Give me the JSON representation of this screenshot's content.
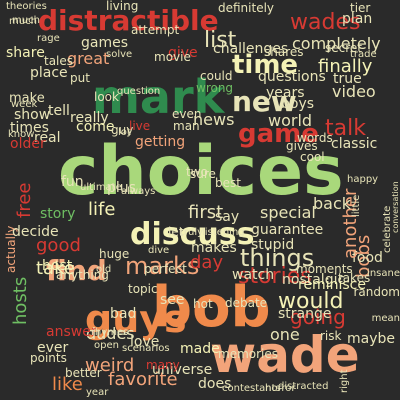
{
  "palette": {
    "background": "#2a2a2a",
    "light_green": "#a9d87b",
    "green": "#6fbf63",
    "dark_green": "#2f8b4e",
    "red": "#d73a33",
    "orange": "#f08a4b",
    "salmon": "#f2a47a",
    "pale_yellow": "#f4f2b6",
    "cream": "#e8e4b8"
  },
  "words": [
    "choices",
    "bob",
    "wade",
    "guys",
    "mark",
    "distractible",
    "discuss",
    "find",
    "marks",
    "time",
    "new",
    "game",
    "things",
    "stories",
    "talk",
    "list",
    "wades",
    "hosts",
    "like",
    "would",
    "bobs",
    "favorite",
    "life",
    "finally",
    "completely",
    "first",
    "good",
    "take",
    "getting",
    "special",
    "day",
    "guarantee",
    "dudes",
    "going",
    "strange",
    "one",
    "made",
    "weird",
    "story",
    "classic",
    "video",
    "free",
    "news",
    "world",
    "plan",
    "tier",
    "living",
    "theories",
    "definitely",
    "share",
    "games",
    "place",
    "make",
    "times",
    "really",
    "come",
    "real",
    "show",
    "tell",
    "great",
    "give",
    "challenges",
    "movie",
    "secret",
    "true",
    "questions",
    "wrong",
    "years",
    "boys",
    "older",
    "look",
    "actually",
    "fun",
    "decide",
    "host",
    "plus",
    "topic",
    "bad",
    "see",
    "watch",
    "nostalgic",
    "reminisce",
    "maybe",
    "answer",
    "love",
    "points",
    "better",
    "ever",
    "universe",
    "does",
    "memories",
    "many",
    "food",
    "let",
    "takes",
    "random",
    "hot",
    "debate",
    "huge",
    "perfect",
    "anything",
    "rhymes",
    "mean",
    "another",
    "back",
    "makes",
    "two",
    "best",
    "words",
    "say",
    "stupid",
    "rage",
    "much",
    "tales",
    "put",
    "attempt",
    "solve",
    "could",
    "shares",
    "trade",
    "question",
    "much",
    "week",
    "guy",
    "live",
    "man",
    "even",
    "right",
    "sure",
    "risk",
    "gives",
    "cool",
    "little",
    "happy",
    "moments",
    "insane",
    "celebrate",
    "contestants",
    "distracted",
    "horror",
    "old",
    "year",
    "ultimate",
    "scenarios",
    "dive",
    "open",
    "listening",
    "always",
    "truly",
    "know",
    "lot",
    "conversation"
  ]
}
